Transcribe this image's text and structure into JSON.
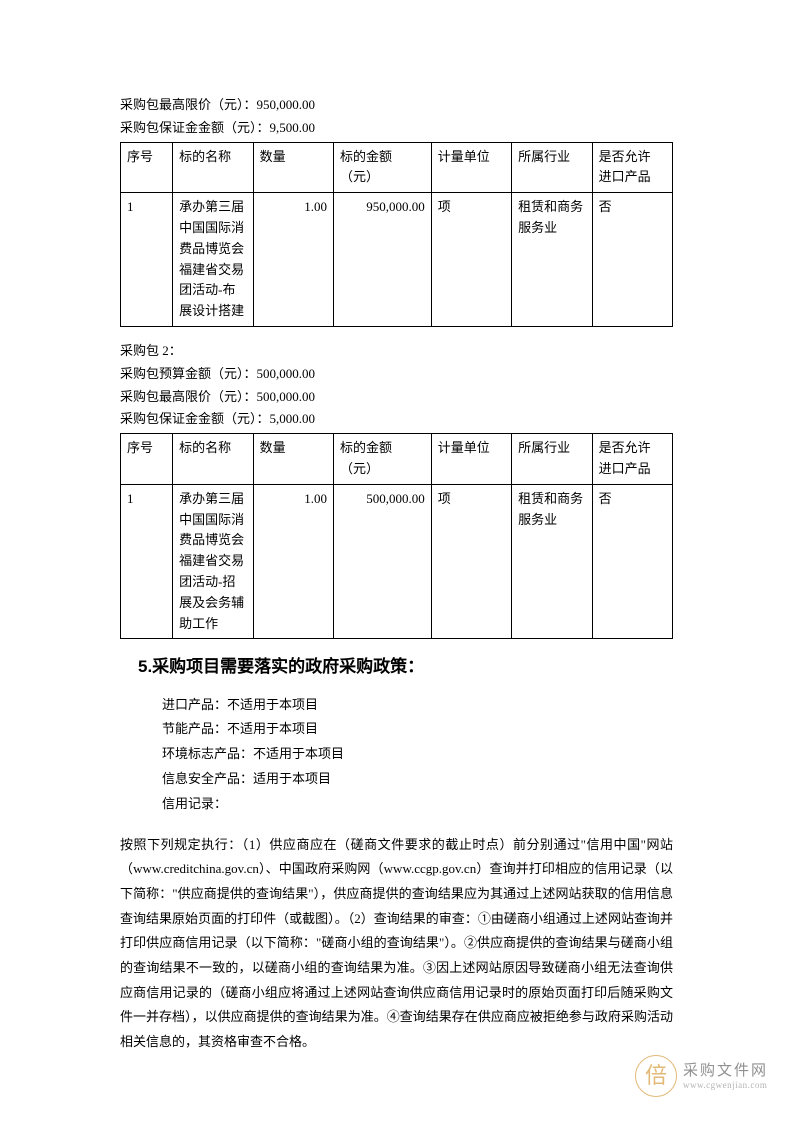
{
  "colors": {
    "text": "#000000",
    "background": "#ffffff",
    "table_border": "#000000",
    "watermark_logo": "#d9a24a",
    "watermark_text": "#6b6b6b",
    "watermark_url": "#9a9a9a"
  },
  "typography": {
    "body_family": "SimSun",
    "title_family": "SimHei",
    "body_size_pt": 10,
    "title_size_pt": 13,
    "line_height": 1.6
  },
  "package1": {
    "max_price_line": "采购包最高限价（元）：950,000.00",
    "deposit_line": "采购包保证金金额（元）：9,500.00"
  },
  "table_headers": {
    "c1": "序号",
    "c2": "标的名称",
    "c3": "数量",
    "c4_l1": "标的金额",
    "c4_l2": "（元）",
    "c5": "计量单位",
    "c6": "所属行业",
    "c7_l1": "是否允许",
    "c7_l2": "进口产品"
  },
  "table1_row": {
    "c1": "1",
    "c2": "承办第三届中国国际消费品博览会福建省交易团活动-布展设计搭建",
    "c3": "1.00",
    "c4": "950,000.00",
    "c5": "项",
    "c6": "租赁和商务服务业",
    "c7": "否"
  },
  "package2": {
    "title_line": "采购包 2：",
    "budget_line": "采购包预算金额（元）：500,000.00",
    "max_price_line": "采购包最高限价（元）：500,000.00",
    "deposit_line": "采购包保证金金额（元）：5,000.00"
  },
  "table2_row": {
    "c1": "1",
    "c2": "承办第三届中国国际消费品博览会福建省交易团活动-招展及会务辅助工作",
    "c3": "1.00",
    "c4": "500,000.00",
    "c5": "项",
    "c6": "租赁和商务服务业",
    "c7": "否"
  },
  "section5_title": "5.采购项目需要落实的政府采购政策：",
  "policies": {
    "p1": "进口产品：不适用于本项目",
    "p2": "节能产品：不适用于本项目",
    "p3": "环境标志产品：不适用于本项目",
    "p4": "信息安全产品：适用于本项目",
    "p5": "信用记录："
  },
  "body_para": "按照下列规定执行：（1）供应商应在（磋商文件要求的截止时点）前分别通过\"信用中国\"网站（www.creditchina.gov.cn）、中国政府采购网（www.ccgp.gov.cn）查询并打印相应的信用记录（以下简称：\"供应商提供的查询结果\"），供应商提供的查询结果应为其通过上述网站获取的信用信息查询结果原始页面的打印件（或截图）。（2）查询结果的审查：①由磋商小组通过上述网站查询并打印供应商信用记录（以下简称：\"磋商小组的查询结果\"）。②供应商提供的查询结果与磋商小组的查询结果不一致的，以磋商小组的查询结果为准。③因上述网站原因导致磋商小组无法查询供应商信用记录的（磋商小组应将通过上述网站查询供应商信用记录时的原始页面打印后随采购文件一并存档），以供应商提供的查询结果为准。④查询结果存在供应商应被拒绝参与政府采购活动相关信息的，其资格审查不合格。",
  "watermark": {
    "logo_char": "倍",
    "cn": "采购文件网",
    "url": "www.cgwenjian.com"
  }
}
